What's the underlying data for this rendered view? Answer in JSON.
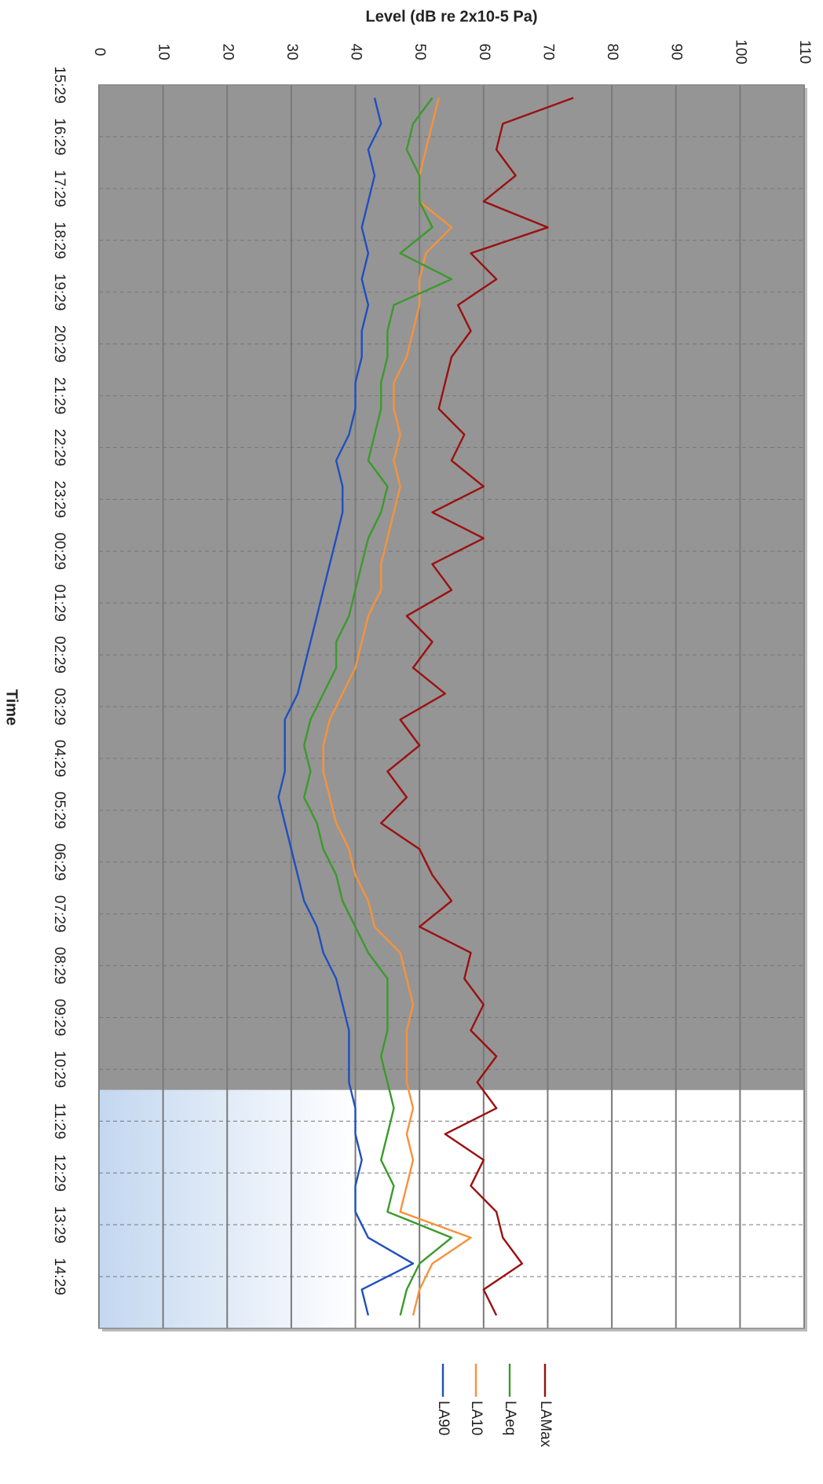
{
  "chart_data": {
    "type": "line",
    "title": "Level (dB re 2x10-5 Pa)",
    "x_label": "Time",
    "categories": [
      "15:29",
      null,
      "16:29",
      null,
      "17:29",
      null,
      "18:29",
      null,
      "19:29",
      null,
      "20:29",
      null,
      "21:29",
      null,
      "22:29",
      null,
      "23:29",
      null,
      "00:29",
      null,
      "01:29",
      null,
      "02:29",
      null,
      "03:29",
      null,
      "04:29",
      null,
      "05:29",
      null,
      "06:29",
      null,
      "07:29",
      null,
      "08:29",
      null,
      "09:29",
      null,
      "10:29",
      null,
      "11:29",
      null,
      "12:29",
      null,
      "13:29",
      null,
      "14:29",
      null
    ],
    "series": [
      {
        "name": "LAMax",
        "color": "#9b1010",
        "values": [
          74,
          63,
          62,
          65,
          60,
          70,
          58,
          62,
          56,
          58,
          55,
          54,
          53,
          57,
          55,
          60,
          52,
          60,
          52,
          55,
          48,
          52,
          49,
          54,
          47,
          50,
          45,
          48,
          44,
          50,
          52,
          55,
          50,
          58,
          57,
          60,
          58,
          62,
          59,
          62,
          54,
          60,
          58,
          62,
          63,
          66,
          60,
          62
        ]
      },
      {
        "name": "LAeq",
        "color": "#3b9a2b",
        "values": [
          52,
          49,
          48,
          50,
          50,
          52,
          47,
          55,
          46,
          45,
          45,
          44,
          44,
          43,
          42,
          45,
          44,
          42,
          41,
          40,
          39,
          37,
          37,
          35,
          33,
          32,
          33,
          32,
          34,
          35,
          37,
          38,
          40,
          42,
          45,
          45,
          45,
          44,
          45,
          46,
          45,
          44,
          46,
          45,
          55,
          50,
          48,
          47
        ]
      },
      {
        "name": "LA10",
        "color": "#f7923a",
        "values": [
          53,
          52,
          51,
          50,
          50,
          55,
          51,
          50,
          50,
          49,
          48,
          46,
          46,
          47,
          46,
          47,
          46,
          45,
          44,
          44,
          42,
          41,
          40,
          38,
          36,
          35,
          35,
          36,
          37,
          39,
          40,
          42,
          43,
          47,
          48,
          49,
          48,
          48,
          48,
          49,
          48,
          49,
          48,
          47,
          58,
          52,
          50,
          49
        ]
      },
      {
        "name": "LA90",
        "color": "#1f4fbf",
        "values": [
          43,
          44,
          42,
          43,
          42,
          41,
          42,
          41,
          42,
          41,
          41,
          40,
          40,
          39,
          37,
          38,
          38,
          37,
          36,
          35,
          34,
          33,
          32,
          31,
          29,
          29,
          29,
          28,
          29,
          30,
          31,
          32,
          34,
          35,
          37,
          38,
          39,
          39,
          39,
          40,
          40,
          41,
          40,
          40,
          42,
          49,
          41,
          42
        ]
      }
    ],
    "ylim": [
      0,
      110
    ],
    "yticks": [
      0,
      10,
      20,
      30,
      40,
      50,
      60,
      70,
      80,
      90,
      100,
      110
    ],
    "grid": true
  }
}
